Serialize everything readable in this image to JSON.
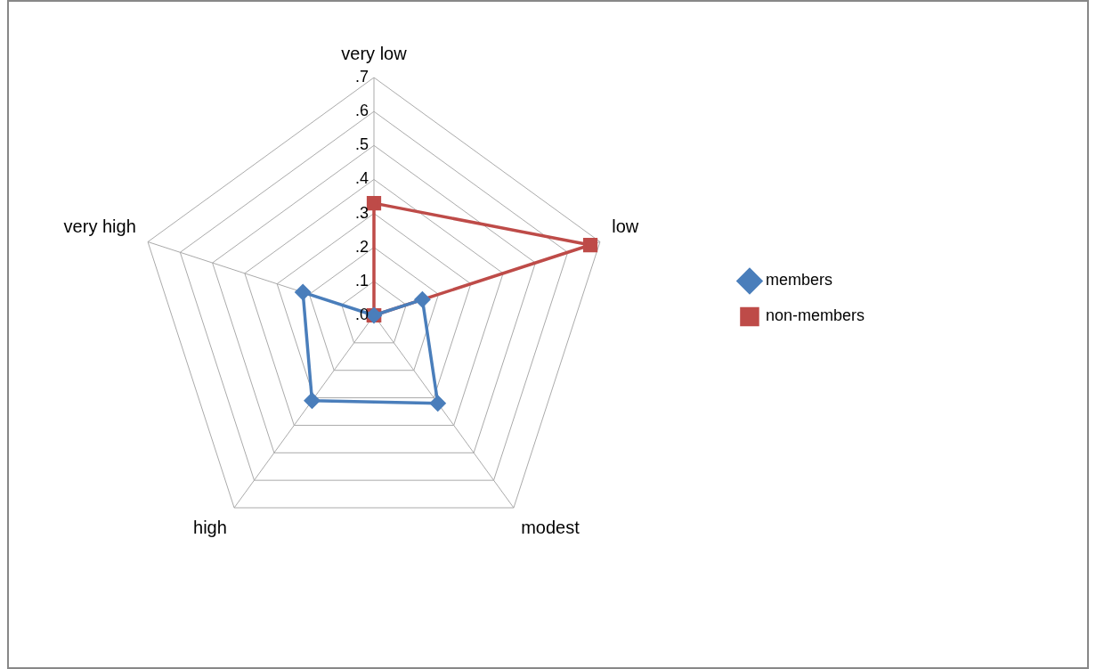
{
  "chart_data": {
    "type": "radar",
    "categories": [
      "very low",
      "low",
      "modest",
      "high",
      "very high"
    ],
    "series": [
      {
        "name": "members",
        "color": "#4a7ebb",
        "marker": "diamond",
        "values": [
          0,
          0.15,
          0.32,
          0.31,
          0.22
        ]
      },
      {
        "name": "non-members",
        "color": "#be4b48",
        "marker": "square",
        "values": [
          0.33,
          0.67,
          0,
          0,
          0
        ]
      }
    ],
    "ylim": [
      0,
      0.7
    ],
    "yticks": [
      {
        "value": 0,
        "label": ".0"
      },
      {
        "value": 0.1,
        "label": ".1"
      },
      {
        "value": 0.2,
        "label": ".2"
      },
      {
        "value": 0.3,
        "label": ".3"
      },
      {
        "value": 0.4,
        "label": ".4"
      },
      {
        "value": 0.5,
        "label": ".5"
      },
      {
        "value": 0.6,
        "label": ".6"
      },
      {
        "value": 0.7,
        "label": ".7"
      }
    ],
    "grid": true,
    "legend": "right"
  }
}
